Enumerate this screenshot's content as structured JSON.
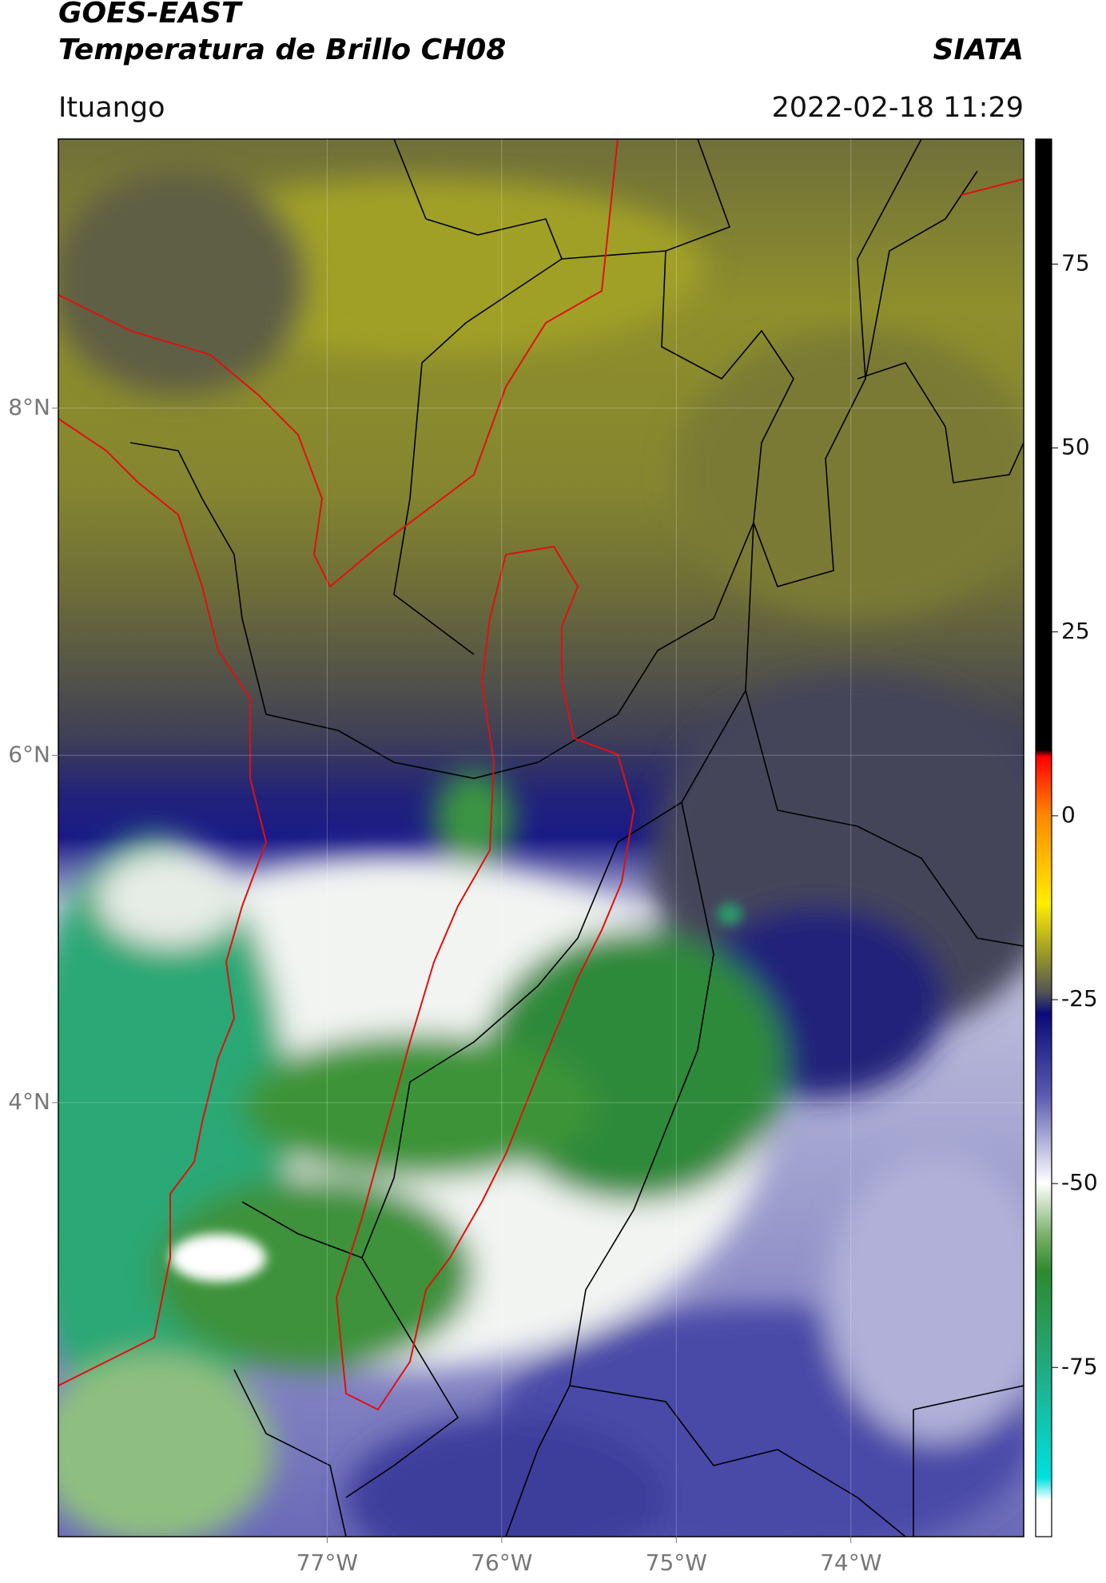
{
  "chart_data": {
    "type": "map",
    "title": "GOES-EAST",
    "subtitle": "Temperatura de Brillo CH08",
    "source": "SIATA",
    "location": "Ituango",
    "timestamp": "2022-02-18 11:29",
    "xlim": [
      -78.54,
      -73.01
    ],
    "ylim": [
      1.5,
      9.55
    ],
    "xticks": [
      {
        "value": -77,
        "label": "77°W"
      },
      {
        "value": -76,
        "label": "76°W"
      },
      {
        "value": -75,
        "label": "75°W"
      },
      {
        "value": -74,
        "label": "74°W"
      }
    ],
    "yticks": [
      {
        "value": 8,
        "label": "8°N"
      },
      {
        "value": 6,
        "label": "6°N"
      },
      {
        "value": 4,
        "label": "4°N"
      }
    ],
    "grid": true,
    "colorbar": {
      "lim": [
        -98,
        92
      ],
      "ticks": [
        75,
        50,
        25,
        0,
        -25,
        -50,
        -75
      ]
    }
  }
}
